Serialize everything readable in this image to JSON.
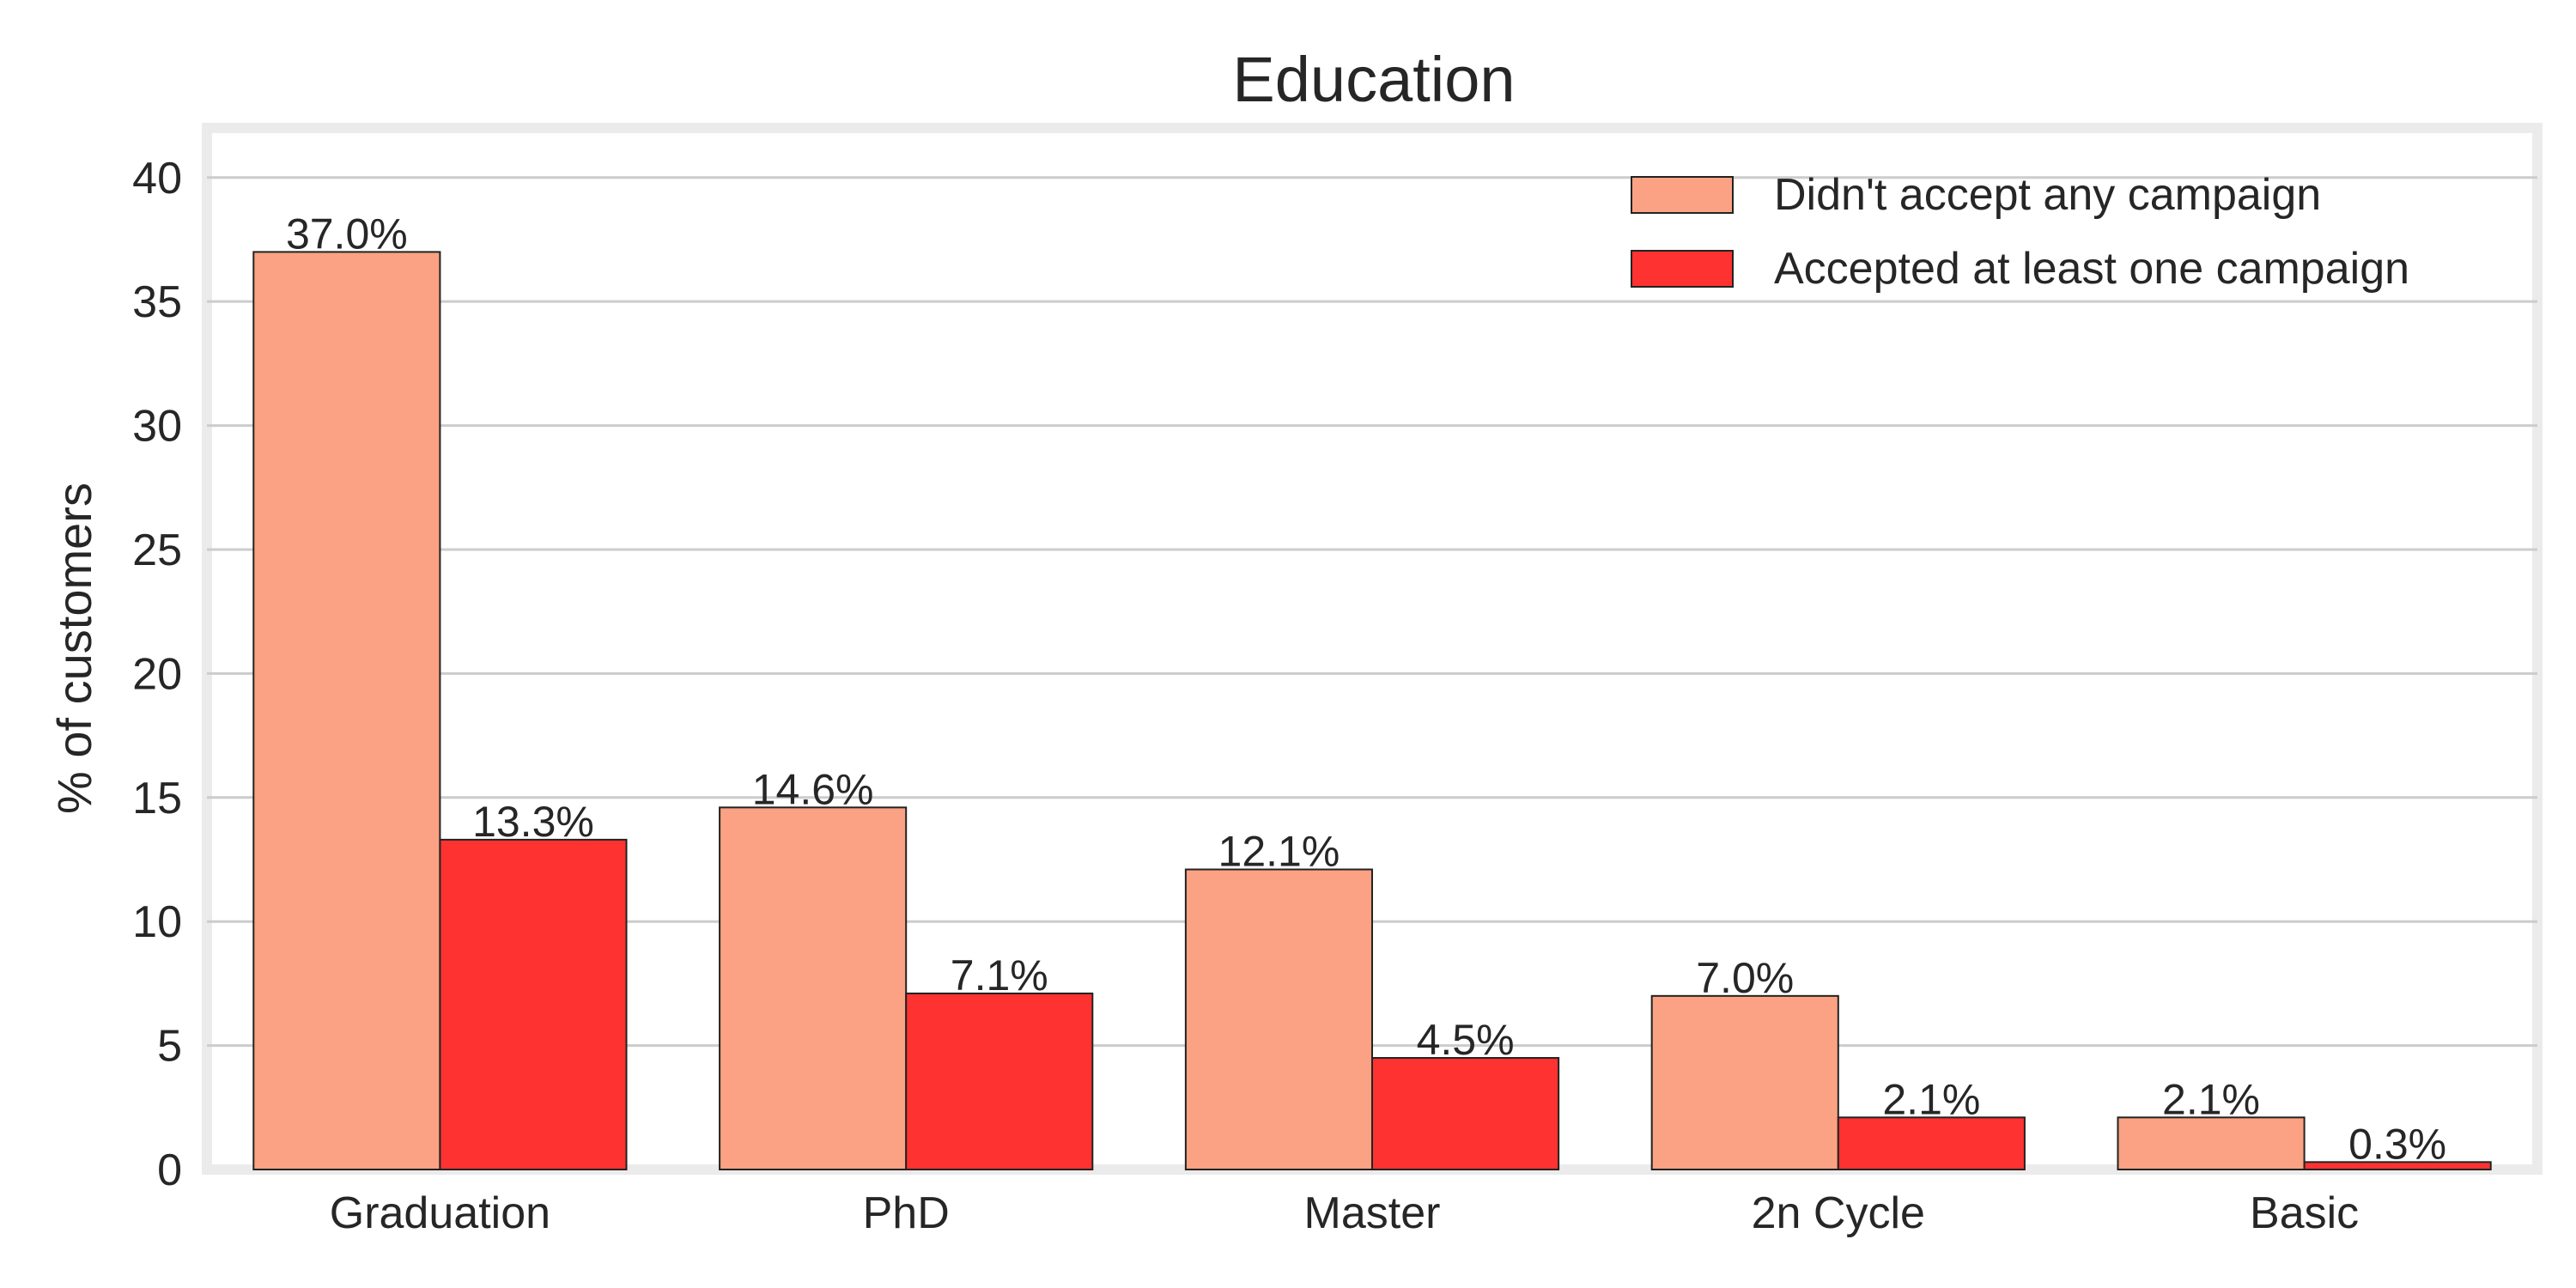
{
  "chart_data": {
    "type": "bar",
    "title": "Education",
    "xlabel": "",
    "ylabel": "% of customers",
    "categories": [
      "Graduation",
      "PhD",
      "Master",
      "2n Cycle",
      "Basic"
    ],
    "series": [
      {
        "name": "Didn't accept any campaign",
        "color": "#FAA283",
        "values": [
          37.0,
          14.6,
          12.1,
          7.0,
          2.1
        ],
        "labels": [
          "37.0%",
          "14.6%",
          "12.1%",
          "7.0%",
          "2.1%"
        ]
      },
      {
        "name": "Accepted at least one campaign",
        "color": "#FF3232",
        "values": [
          13.3,
          7.1,
          4.5,
          2.1,
          0.3
        ],
        "labels": [
          "13.3%",
          "7.1%",
          "4.5%",
          "2.1%",
          "0.3%"
        ]
      }
    ],
    "ylim": [
      0,
      42
    ],
    "yticks": [
      0,
      5,
      10,
      15,
      20,
      25,
      30,
      35,
      40
    ],
    "ytick_labels": [
      "0",
      "5",
      "10",
      "15",
      "20",
      "25",
      "30",
      "35",
      "40"
    ],
    "grid": "horizontal",
    "legend": "top-right"
  }
}
